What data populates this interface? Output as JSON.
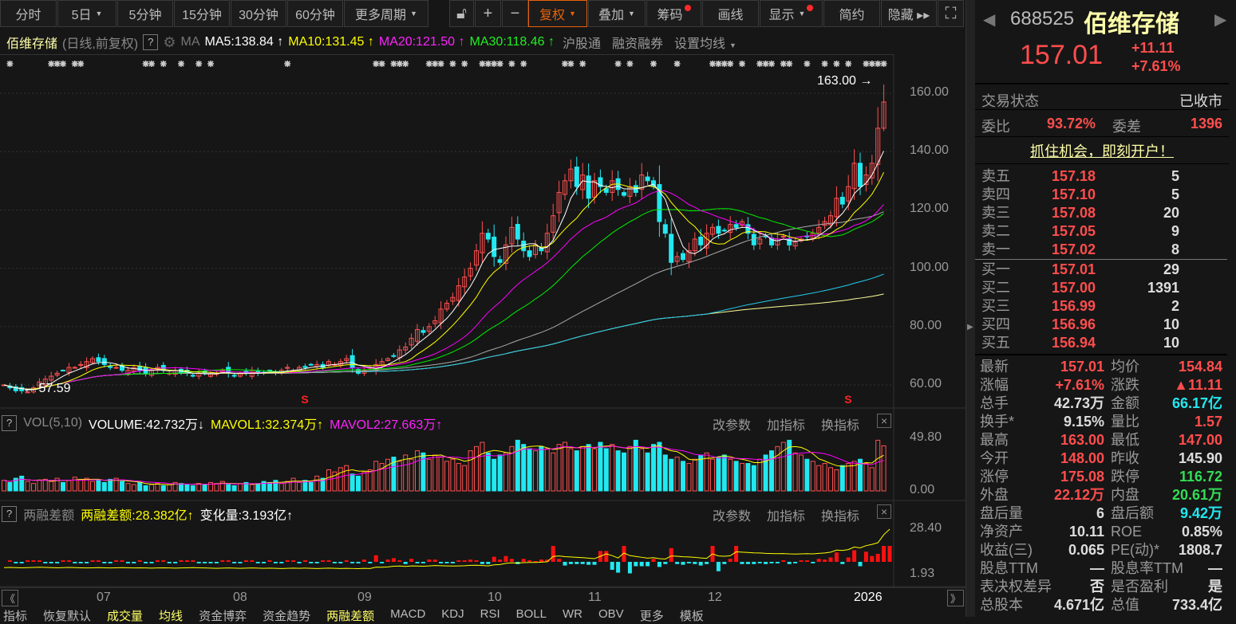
{
  "toolbar": {
    "periods": [
      {
        "label": "分时"
      },
      {
        "label": "5日",
        "caret": true
      },
      {
        "label": "5分钟"
      },
      {
        "label": "15分钟"
      },
      {
        "label": "30分钟"
      },
      {
        "label": "60分钟"
      },
      {
        "label": "更多周期",
        "caret": true
      }
    ],
    "tools": [
      {
        "label": "复权",
        "caret": true,
        "active": true
      },
      {
        "label": "叠加",
        "caret": true
      },
      {
        "label": "筹码",
        "dot": true
      },
      {
        "label": "画线"
      },
      {
        "label": "显示",
        "caret": true,
        "dot": true
      },
      {
        "label": "简约"
      },
      {
        "label": "隐藏 ▸▸"
      }
    ],
    "icons": [
      "lock-open-icon",
      "zoom-in-icon",
      "zoom-out-icon",
      "fullscreen-icon"
    ]
  },
  "chart_header": {
    "name": "佰维存储",
    "sub": "(日线,前复权)",
    "help": "?",
    "ma_label": "MA",
    "ma5": "MA5:138.84",
    "ma10": "MA10:131.45",
    "ma20": "MA20:121.50",
    "ma30": "MA30:118.46",
    "links": [
      "沪股通",
      "融资融券",
      "设置均线"
    ]
  },
  "volume_header": {
    "help": "?",
    "name": "VOL(5,10)",
    "volume": "VOLUME:42.732万",
    "mavol1": "MAVOL1:32.374万",
    "mavol2": "MAVOL2:27.663万"
  },
  "margin_header": {
    "help": "?",
    "name": "两融差额",
    "value": "两融差额:28.382亿",
    "change": "变化量:3.193亿"
  },
  "panel_actions": [
    "改参数",
    "加指标",
    "换指标"
  ],
  "colors": {
    "up": "#ff5050",
    "down": "#22e8f0",
    "ma5": "#ffffff",
    "ma10": "#ffff00",
    "ma20": "#ff00ff",
    "ma30": "#00ee00",
    "ma60": "#aaaaaa",
    "ma120": "#22ccee",
    "ma250": "#ffff99",
    "accent": "#e8620c"
  },
  "chart_data": {
    "type": "candlestick",
    "price_axis": [
      "160.00",
      "140.00",
      "120.00",
      "100.00",
      "80.00",
      "60.00"
    ],
    "ylim": [
      60,
      160
    ],
    "high_label": "163.00",
    "low_label": "57.59",
    "volume_axis": [
      "49.80",
      "0.00"
    ],
    "margin_axis": [
      "28.40",
      "1.93"
    ],
    "months": [
      "07",
      "08",
      "09",
      "10",
      "11",
      "12",
      "2026"
    ],
    "event_days": [
      1,
      8,
      9,
      10,
      12,
      13,
      24,
      25,
      27,
      30,
      33,
      35,
      48,
      63,
      64,
      66,
      67,
      68,
      72,
      73,
      74,
      76,
      78,
      81,
      82,
      83,
      84,
      86,
      88,
      95,
      96,
      98,
      104,
      106,
      110,
      114,
      120,
      121,
      122,
      123,
      125,
      128,
      129,
      130,
      132,
      133,
      136,
      139,
      141,
      143,
      146,
      147,
      148,
      149
    ],
    "closes": [
      60,
      59,
      58,
      58,
      57.6,
      59,
      61,
      62,
      63,
      64,
      65,
      66,
      66,
      67,
      68,
      69,
      68,
      67,
      66,
      66,
      65,
      65,
      66,
      65,
      64,
      65,
      66,
      65,
      64,
      65,
      64,
      64,
      63,
      64,
      64,
      64,
      64,
      65,
      64,
      63,
      64,
      64,
      65,
      64,
      64,
      65,
      64,
      65,
      66,
      65,
      66,
      66,
      67,
      67,
      66,
      68,
      67,
      68,
      69,
      66,
      64,
      65,
      66,
      67,
      68,
      69,
      70,
      72,
      73,
      76,
      79,
      78,
      80,
      82,
      86,
      88,
      90,
      94,
      97,
      100,
      106,
      112,
      110,
      104,
      102,
      108,
      114,
      110,
      106,
      104,
      108,
      106,
      112,
      118,
      126,
      130,
      134,
      128,
      132,
      124,
      130,
      128,
      126,
      130,
      127,
      125,
      128,
      126,
      132,
      130,
      128,
      116,
      112,
      102,
      104,
      103,
      106,
      110,
      108,
      112,
      114,
      112,
      113,
      115,
      114,
      116,
      112,
      108,
      110,
      111,
      108,
      110,
      111,
      108,
      109,
      110,
      111,
      112,
      114,
      116,
      118,
      124,
      122,
      128,
      136,
      128,
      132,
      136,
      148,
      157.01
    ],
    "volumes": [
      10,
      8,
      12,
      14,
      9,
      7,
      10,
      11,
      9,
      12,
      8,
      10,
      13,
      11,
      12,
      9,
      10,
      8,
      11,
      12,
      9,
      7,
      6,
      8,
      5,
      6,
      7,
      5,
      6,
      8,
      7,
      6,
      5,
      7,
      6,
      8,
      7,
      9,
      6,
      5,
      7,
      8,
      6,
      7,
      9,
      8,
      10,
      7,
      9,
      12,
      8,
      10,
      8,
      14,
      12,
      20,
      18,
      22,
      24,
      16,
      14,
      18,
      20,
      28,
      26,
      30,
      32,
      28,
      34,
      30,
      38,
      36,
      30,
      34,
      32,
      28,
      30,
      26,
      24,
      38,
      42,
      46,
      36,
      30,
      34,
      36,
      42,
      48,
      44,
      40,
      38,
      42,
      40,
      36,
      44,
      46,
      40,
      38,
      42,
      44,
      40,
      46,
      40,
      44,
      38,
      36,
      42,
      48,
      40,
      36,
      44,
      46,
      34,
      30,
      32,
      28,
      26,
      30,
      34,
      36,
      30,
      32,
      34,
      30,
      28,
      26,
      26,
      24,
      30,
      34,
      38,
      42,
      46,
      48,
      36,
      34,
      30,
      28,
      24,
      26,
      22,
      20,
      24,
      26,
      28,
      30,
      26,
      22,
      48,
      42.73
    ],
    "margin_balance": [
      6.0,
      6.1,
      6.0,
      5.9,
      6.0,
      6.1,
      6.2,
      6.1,
      6.0,
      5.9,
      6.0,
      6.1,
      6.0,
      5.9,
      5.8,
      5.9,
      6.0,
      5.9,
      5.8,
      5.9,
      6.0,
      5.9,
      5.8,
      5.9,
      5.8,
      5.7,
      5.8,
      5.9,
      5.8,
      5.7,
      5.8,
      5.9,
      6.0,
      5.9,
      5.8,
      5.7,
      5.6,
      5.7,
      5.8,
      5.7,
      5.6,
      5.7,
      5.8,
      5.7,
      5.6,
      5.7,
      5.6,
      5.5,
      5.6,
      5.7,
      5.6,
      5.7,
      5.6,
      5.5,
      5.6,
      5.7,
      5.6,
      5.5,
      5.6,
      5.5,
      5.4,
      5.6,
      5.5,
      6.3,
      6.2,
      6.4,
      6.8,
      6.9,
      6.7,
      7.0,
      6.9,
      6.8,
      7.0,
      7.2,
      7.1,
      7.0,
      6.9,
      7.0,
      7.1,
      7.3,
      7.4,
      7.2,
      7.0,
      7.6,
      7.8,
      8.5,
      8.8,
      8.6,
      8.9,
      9.0,
      9.0,
      9.2,
      9.4,
      12.5,
      12.8,
      12.4,
      12.2,
      12.0,
      11.8,
      11.5,
      11.2,
      12.6,
      14.0,
      13.0,
      11.6,
      14.5,
      13.0,
      12.5,
      12.0,
      11.5,
      11.8,
      11.2,
      11.0,
      12.8,
      12.6,
      12.3,
      12.2,
      12.0,
      11.6,
      11.4,
      14.0,
      12.8,
      12.6,
      12.9,
      15.2,
      15.0,
      14.8,
      14.6,
      14.5,
      14.3,
      14.2,
      14.1,
      14.2,
      14.0,
      13.9,
      14.0,
      14.1,
      14.0,
      14.3,
      14.5,
      15.0,
      16.2,
      16.0,
      16.5,
      18.0,
      17.5,
      18.8,
      19.5,
      20.5,
      25.19,
      28.382
    ]
  },
  "quote": {
    "code": "688525",
    "name": "佰维存储",
    "price": "157.01",
    "change": "+11.11",
    "pct": "+7.61%",
    "status_label": "交易状态",
    "status": "已收市",
    "wb_label": "委比",
    "wb": "93.72%",
    "wc_label": "委差",
    "wc": "1396",
    "promo": "抓住机会，即刻开户！"
  },
  "orderbook": {
    "asks": [
      {
        "label": "卖五",
        "price": "157.18",
        "vol": "5"
      },
      {
        "label": "卖四",
        "price": "157.10",
        "vol": "5"
      },
      {
        "label": "卖三",
        "price": "157.08",
        "vol": "20"
      },
      {
        "label": "卖二",
        "price": "157.05",
        "vol": "9"
      },
      {
        "label": "卖一",
        "price": "157.02",
        "vol": "8"
      }
    ],
    "bids": [
      {
        "label": "买一",
        "price": "157.01",
        "vol": "29"
      },
      {
        "label": "买二",
        "price": "157.00",
        "vol": "1391"
      },
      {
        "label": "买三",
        "price": "156.99",
        "vol": "2"
      },
      {
        "label": "买四",
        "price": "156.96",
        "vol": "10"
      },
      {
        "label": "买五",
        "price": "156.94",
        "vol": "10"
      }
    ]
  },
  "stats": [
    [
      {
        "k": "最新",
        "v": "157.01",
        "c": "red"
      },
      {
        "k": "均价",
        "v": "154.84",
        "c": "red"
      }
    ],
    [
      {
        "k": "涨幅",
        "v": "+7.61%",
        "c": "red"
      },
      {
        "k": "涨跌",
        "v": "▲11.11",
        "c": "red"
      }
    ],
    [
      {
        "k": "总手",
        "v": "42.73万",
        "c": "wht"
      },
      {
        "k": "金额",
        "v": "66.17亿",
        "c": "cyan"
      }
    ],
    [
      {
        "k": "换手*",
        "v": "9.15%",
        "c": "wht"
      },
      {
        "k": "量比",
        "v": "1.57",
        "c": "red"
      }
    ],
    [
      {
        "k": "最高",
        "v": "163.00",
        "c": "red"
      },
      {
        "k": "最低",
        "v": "147.00",
        "c": "red"
      }
    ],
    [
      {
        "k": "今开",
        "v": "148.00",
        "c": "red"
      },
      {
        "k": "昨收",
        "v": "145.90",
        "c": "wht"
      }
    ],
    [
      {
        "k": "涨停",
        "v": "175.08",
        "c": "red"
      },
      {
        "k": "跌停",
        "v": "116.72",
        "c": "grn"
      }
    ],
    [
      {
        "k": "外盘",
        "v": "22.12万",
        "c": "red"
      },
      {
        "k": "内盘",
        "v": "20.61万",
        "c": "grn"
      }
    ],
    [
      {
        "k": "盘后量",
        "v": "6",
        "c": "wht"
      },
      {
        "k": "盘后额",
        "v": "9.42万",
        "c": "cyan"
      }
    ],
    [
      {
        "k": "净资产",
        "v": "10.11",
        "c": "wht"
      },
      {
        "k": "ROE",
        "v": "0.85%",
        "c": "wht"
      }
    ],
    [
      {
        "k": "收益(三)",
        "v": "0.065",
        "c": "wht"
      },
      {
        "k": "PE(动)*",
        "v": "1808.7",
        "c": "wht"
      }
    ],
    [
      {
        "k": "股息TTM",
        "v": "—",
        "c": "wht"
      },
      {
        "k": "股息率TTM",
        "v": "—",
        "c": "wht"
      }
    ],
    [
      {
        "k": "表决权差异",
        "v": "否",
        "c": "wht"
      },
      {
        "k": "是否盈利",
        "v": "是",
        "c": "wht"
      }
    ],
    [
      {
        "k": "总股本",
        "v": "4.671亿",
        "c": "wht"
      },
      {
        "k": "总值",
        "v": "733.4亿",
        "c": "wht"
      }
    ]
  ],
  "bottom_tabs": [
    "指标",
    "恢复默认",
    "成交量",
    "均线",
    "资金博弈",
    "资金趋势",
    "两融差额",
    "MACD",
    "KDJ",
    "RSI",
    "BOLL",
    "WR",
    "OBV",
    "更多",
    "模板"
  ]
}
